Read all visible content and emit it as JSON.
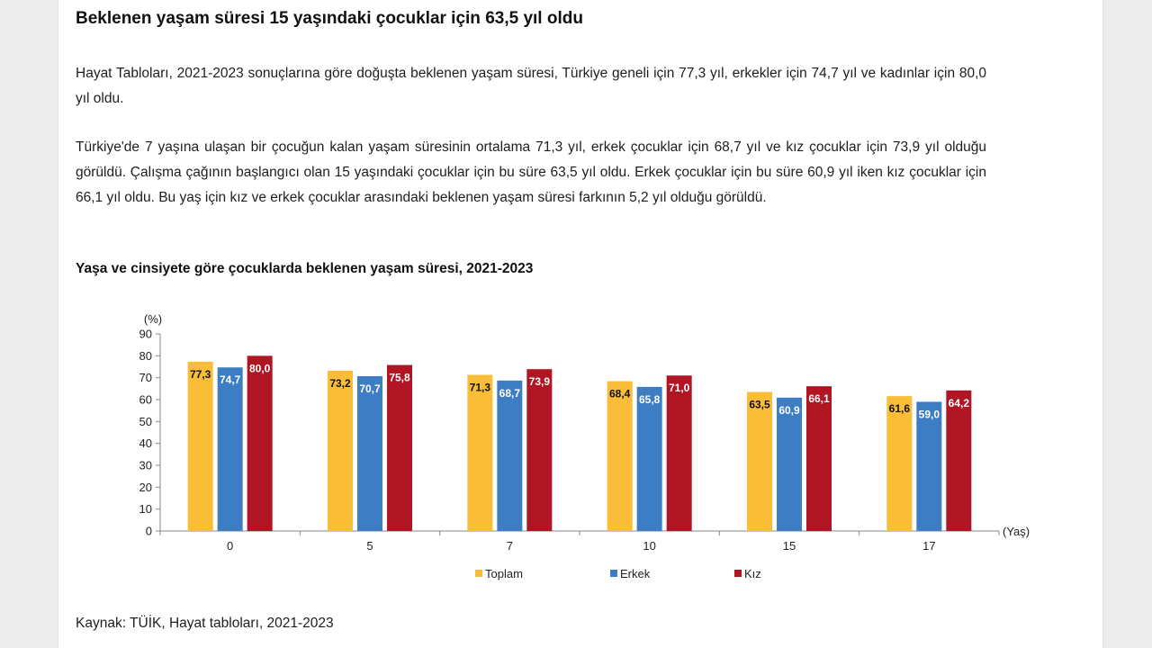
{
  "article": {
    "headline": "Beklenen yaşam süresi 15 yaşındaki çocuklar için 63,5 yıl oldu",
    "paragraph1": "Hayat Tabloları, 2021-2023 sonuçlarına göre doğuşta beklenen yaşam süresi, Türkiye geneli için 77,3 yıl, erkekler için 74,7 yıl ve kadınlar için 80,0 yıl oldu.",
    "paragraph2": "Türkiye'de 7 yaşına ulaşan bir çocuğun kalan yaşam süresinin ortalama 71,3 yıl, erkek çocuklar için 68,7 yıl ve kız çocuklar için 73,9 yıl olduğu görüldü. Çalışma çağının başlangıcı olan 15 yaşındaki çocuklar için bu süre 63,5 yıl oldu. Erkek çocuklar için bu süre 60,9 yıl iken kız çocuklar için 66,1 yıl oldu. Bu yaş için kız ve erkek çocuklar arasındaki beklenen yaşam süresi farkının 5,2 yıl olduğu görüldü.",
    "source": "Kaynak: TÜİK, Hayat tabloları, 2021-2023"
  },
  "chart_data": {
    "type": "bar",
    "title": "Yaşa ve cinsiyete göre çocuklarda beklenen yaşam süresi, 2021-2023",
    "ylabel": "(%)",
    "xlabel": "(Yaş)",
    "ylim": [
      0,
      90
    ],
    "yticks": [
      0,
      10,
      20,
      30,
      40,
      50,
      60,
      70,
      80,
      90
    ],
    "categories": [
      "0",
      "5",
      "7",
      "10",
      "15",
      "17"
    ],
    "series": [
      {
        "name": "Toplam",
        "color": "#f9bd38",
        "labelColor": "#111111",
        "labelPos": "left",
        "values": [
          77.3,
          73.2,
          71.3,
          68.4,
          63.5,
          61.6
        ],
        "labels": [
          "77,3",
          "73,2",
          "71,3",
          "68,4",
          "63,5",
          "61,6"
        ]
      },
      {
        "name": "Erkek",
        "color": "#3c7dc4",
        "labelColor": "#ffffff",
        "labelPos": "inside",
        "values": [
          74.7,
          70.7,
          68.7,
          65.8,
          60.9,
          59.0
        ],
        "labels": [
          "74,7",
          "70,7",
          "68,7",
          "65,8",
          "60,9",
          "59,0"
        ]
      },
      {
        "name": "Kız",
        "color": "#b01523",
        "labelColor": "#ffffff",
        "labelPos": "inside",
        "values": [
          80.0,
          75.8,
          73.9,
          71.0,
          66.1,
          64.2
        ],
        "labels": [
          "80,0",
          "75,8",
          "73,9",
          "71,0",
          "66,1",
          "64,2"
        ]
      }
    ],
    "grid": false,
    "legend_position": "bottom"
  }
}
